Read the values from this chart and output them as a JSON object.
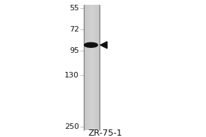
{
  "background_color": "#ffffff",
  "fig_width": 3.0,
  "fig_height": 2.0,
  "dpi": 100,
  "lane_label": "ZR-75-1",
  "lane_label_fontsize": 9,
  "mw_markers": [
    {
      "label": "250",
      "kda": 250
    },
    {
      "label": "130",
      "kda": 130
    },
    {
      "label": "95",
      "kda": 95
    },
    {
      "label": "72",
      "kda": 72
    },
    {
      "label": "55",
      "kda": 55
    }
  ],
  "mw_fontsize": 8,
  "band_kda": 88,
  "band_color": "#111111",
  "arrow_color": "#111111",
  "gel_color_light": "#d0d0d0",
  "gel_color_dark": "#b8b8b8",
  "border_color": "#555555"
}
